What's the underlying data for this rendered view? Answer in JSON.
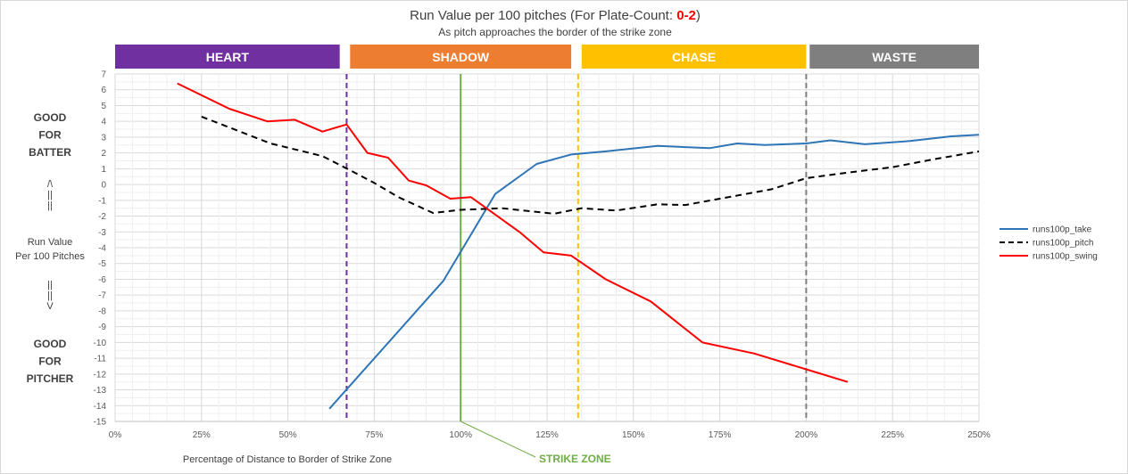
{
  "chart_data": {
    "type": "line",
    "title_prefix": "Run Value per 100 pitches (For Plate-Count: ",
    "title_count": "0-2",
    "title_suffix": ")",
    "subtitle": "As pitch approaches the border of the strike zone",
    "xlabel": "Percentage of Distance to Border of Strike Zone",
    "xlim": [
      0,
      250
    ],
    "ylim": [
      -15,
      7
    ],
    "x_ticks": [
      0,
      25,
      50,
      75,
      100,
      125,
      150,
      175,
      200,
      225,
      250
    ],
    "x_tick_labels": [
      "0%",
      "25%",
      "50%",
      "75%",
      "100%",
      "125%",
      "150%",
      "175%",
      "200%",
      "225%",
      "250%"
    ],
    "y_ticks": [
      7,
      6,
      5,
      4,
      3,
      2,
      1,
      0,
      -1,
      -2,
      -3,
      -4,
      -5,
      -6,
      -7,
      -8,
      -9,
      -10,
      -11,
      -12,
      -13,
      -14,
      -15
    ],
    "grid": true,
    "legend_position": "right",
    "zones": [
      {
        "label": "HEART",
        "start": 0,
        "end": 65,
        "color": "#7030a0"
      },
      {
        "label": "SHADOW",
        "start": 68,
        "end": 132,
        "color": "#ed7d31"
      },
      {
        "label": "CHASE",
        "start": 135,
        "end": 200,
        "color": "#ffc000"
      },
      {
        "label": "WASTE",
        "start": 201,
        "end": 250,
        "color": "#7f7f7f"
      }
    ],
    "vlines": [
      {
        "x": 67,
        "color": "#7030a0",
        "style": "dashed"
      },
      {
        "x": 100,
        "color": "#70ad47",
        "style": "solid"
      },
      {
        "x": 134,
        "color": "#ffc000",
        "style": "dashed"
      },
      {
        "x": 200,
        "color": "#7f7f7f",
        "style": "dashed"
      }
    ],
    "strike_zone_label": "STRIKE ZONE",
    "side_labels": {
      "top": [
        "GOOD",
        "FOR",
        "BATTER"
      ],
      "up_arrow": [
        "/\\",
        "||",
        "||"
      ],
      "middle": [
        "Run Value",
        "Per 100 Pitches"
      ],
      "down_arrow": [
        "||",
        "||",
        "V"
      ],
      "bottom": [
        "GOOD",
        "FOR",
        "PITCHER"
      ]
    },
    "series": [
      {
        "name": "runs100p_take",
        "color": "#2e75b6",
        "style": "solid",
        "x": [
          62,
          95,
          110,
          122,
          132,
          142,
          157,
          172,
          180,
          188,
          200,
          207,
          217,
          230,
          242,
          250
        ],
        "y": [
          -14.2,
          -6.1,
          -0.6,
          1.3,
          1.9,
          2.1,
          2.45,
          2.3,
          2.6,
          2.5,
          2.6,
          2.8,
          2.55,
          2.75,
          3.05,
          3.15
        ]
      },
      {
        "name": "runs100p_pitch",
        "color": "#000000",
        "style": "dashed",
        "x": [
          25,
          45,
          60,
          68,
          75,
          82,
          92,
          100,
          112,
          127,
          135,
          145,
          157,
          165,
          180,
          190,
          200,
          210,
          225,
          237,
          250
        ],
        "y": [
          4.3,
          2.6,
          1.8,
          0.9,
          0.1,
          -0.8,
          -1.8,
          -1.6,
          -1.5,
          -1.85,
          -1.5,
          -1.65,
          -1.25,
          -1.3,
          -0.7,
          -0.3,
          0.4,
          0.7,
          1.1,
          1.6,
          2.1
        ]
      },
      {
        "name": "runs100p_swing",
        "color": "#ff0000",
        "style": "solid",
        "x": [
          18,
          33,
          44,
          52,
          60,
          67,
          73,
          79,
          85,
          90,
          97,
          103,
          110,
          117,
          124,
          132,
          142,
          155,
          170,
          185,
          200,
          212
        ],
        "y": [
          6.4,
          4.8,
          4.0,
          4.1,
          3.35,
          3.8,
          2.0,
          1.7,
          0.25,
          -0.05,
          -0.9,
          -0.8,
          -1.9,
          -3.0,
          -4.3,
          -4.5,
          -6.0,
          -7.4,
          -10.0,
          -10.7,
          -11.7,
          -12.5
        ]
      }
    ]
  }
}
